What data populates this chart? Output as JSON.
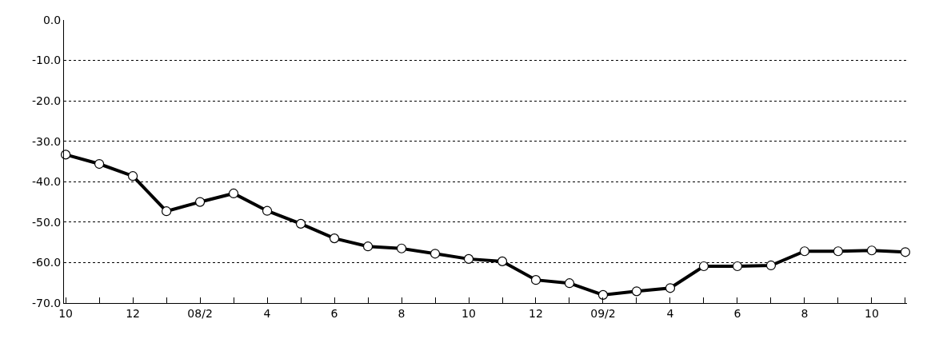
{
  "chart_data": {
    "type": "line",
    "categories": [
      "10",
      null,
      "12",
      null,
      "08/2",
      null,
      "4",
      null,
      "6",
      null,
      "8",
      null,
      "10",
      null,
      "12",
      null,
      "09/2",
      null,
      "4",
      null,
      "6",
      null,
      "8",
      null,
      "10",
      null
    ],
    "series": [
      {
        "color": "#000000",
        "values": [
          -33.3,
          -35.6,
          -38.6,
          -47.3,
          -45.0,
          -42.9,
          -47.2,
          -50.4,
          -54.0,
          -56.0,
          -56.5,
          -57.8,
          -59.1,
          -59.7,
          -64.3,
          -65.1,
          -68.0,
          -67.1,
          -66.3,
          -60.9,
          -60.9,
          -60.7,
          -57.2,
          -57.2,
          -57.0,
          -57.4
        ]
      }
    ],
    "ylim": [
      -70,
      0
    ],
    "yticks": [
      {
        "value": 0,
        "label": "0.0"
      },
      {
        "value": -10,
        "label": "-10.0"
      },
      {
        "value": -20,
        "label": "-20.0"
      },
      {
        "value": -30,
        "label": "-30.0"
      },
      {
        "value": -40,
        "label": "-40.0"
      },
      {
        "value": -50,
        "label": "-50.0"
      },
      {
        "value": -60,
        "label": "-60.0"
      },
      {
        "value": -70,
        "label": "-70.0"
      }
    ],
    "grid": "y",
    "marker": "circle",
    "line_style": "solid"
  }
}
